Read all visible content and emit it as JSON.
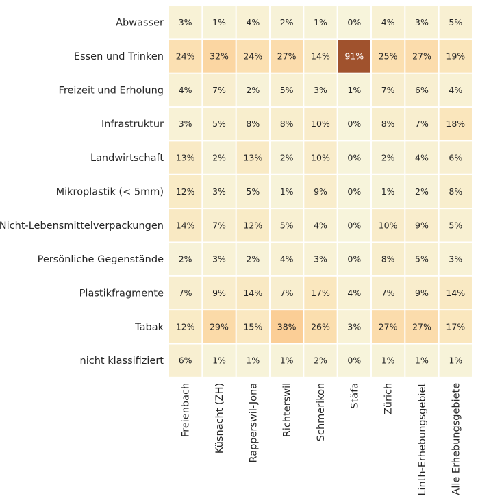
{
  "chart_data": {
    "type": "heatmap",
    "title": "",
    "xlabel": "",
    "ylabel": "",
    "rows": [
      "Abwasser",
      "Essen und Trinken",
      "Freizeit und Erholung",
      "Infrastruktur",
      "Landwirtschaft",
      "Mikroplastik (< 5mm)",
      "Nicht-Lebensmittelverpackungen",
      "Persönliche Gegenstände",
      "Plastikfragmente",
      "Tabak",
      "nicht klassifiziert"
    ],
    "columns": [
      "Freienbach",
      "Küsnacht (ZH)",
      "Rapperswil-Jona",
      "Richterswil",
      "Schmerikon",
      "Stäfa",
      "Zürich",
      "Linth-Erhebungsgebiet",
      "Alle Erhebungsgebiete"
    ],
    "values": [
      [
        3,
        1,
        4,
        2,
        1,
        0,
        4,
        3,
        5
      ],
      [
        24,
        32,
        24,
        27,
        14,
        91,
        25,
        27,
        19
      ],
      [
        4,
        7,
        2,
        5,
        3,
        1,
        7,
        6,
        4
      ],
      [
        3,
        5,
        8,
        8,
        10,
        0,
        8,
        7,
        18
      ],
      [
        13,
        2,
        13,
        2,
        10,
        0,
        2,
        4,
        6
      ],
      [
        12,
        3,
        5,
        1,
        9,
        0,
        1,
        2,
        8
      ],
      [
        14,
        7,
        12,
        5,
        4,
        0,
        10,
        9,
        5
      ],
      [
        2,
        3,
        2,
        4,
        3,
        0,
        8,
        5,
        3
      ],
      [
        7,
        9,
        14,
        7,
        17,
        4,
        7,
        9,
        14
      ],
      [
        12,
        29,
        15,
        38,
        26,
        3,
        27,
        27,
        17
      ],
      [
        6,
        1,
        1,
        1,
        2,
        0,
        1,
        1,
        1
      ]
    ],
    "value_suffix": "%",
    "colorbar": false,
    "grid": false,
    "colormap": [
      "#f7f4db",
      "#fbe2b4",
      "#fbc487",
      "#e68c52",
      "#a0522d"
    ]
  }
}
